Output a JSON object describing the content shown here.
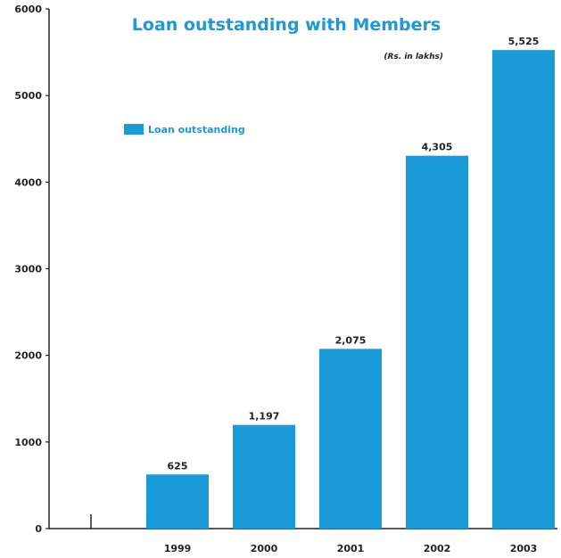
{
  "chart_data": {
    "type": "bar",
    "title": "Loan outstanding with Members",
    "subtitle": "(Rs. in lakhs)",
    "categories": [
      "1999",
      "2000",
      "2001",
      "2002",
      "2003"
    ],
    "series": [
      {
        "name": "Loan outstanding",
        "values": [
          625,
          1197,
          2075,
          4305,
          5525
        ]
      }
    ],
    "data_labels": [
      "625",
      "1,197",
      "2,075",
      "4,305",
      "5,525"
    ],
    "yticks": [
      "0",
      "1000",
      "2000",
      "3000",
      "4000",
      "5000",
      "6000"
    ],
    "ylim": [
      0,
      6000
    ],
    "grid": false,
    "legend_position": "top-left",
    "bar_color": "#1a9ad6",
    "title_color": "#1a9ad6"
  }
}
